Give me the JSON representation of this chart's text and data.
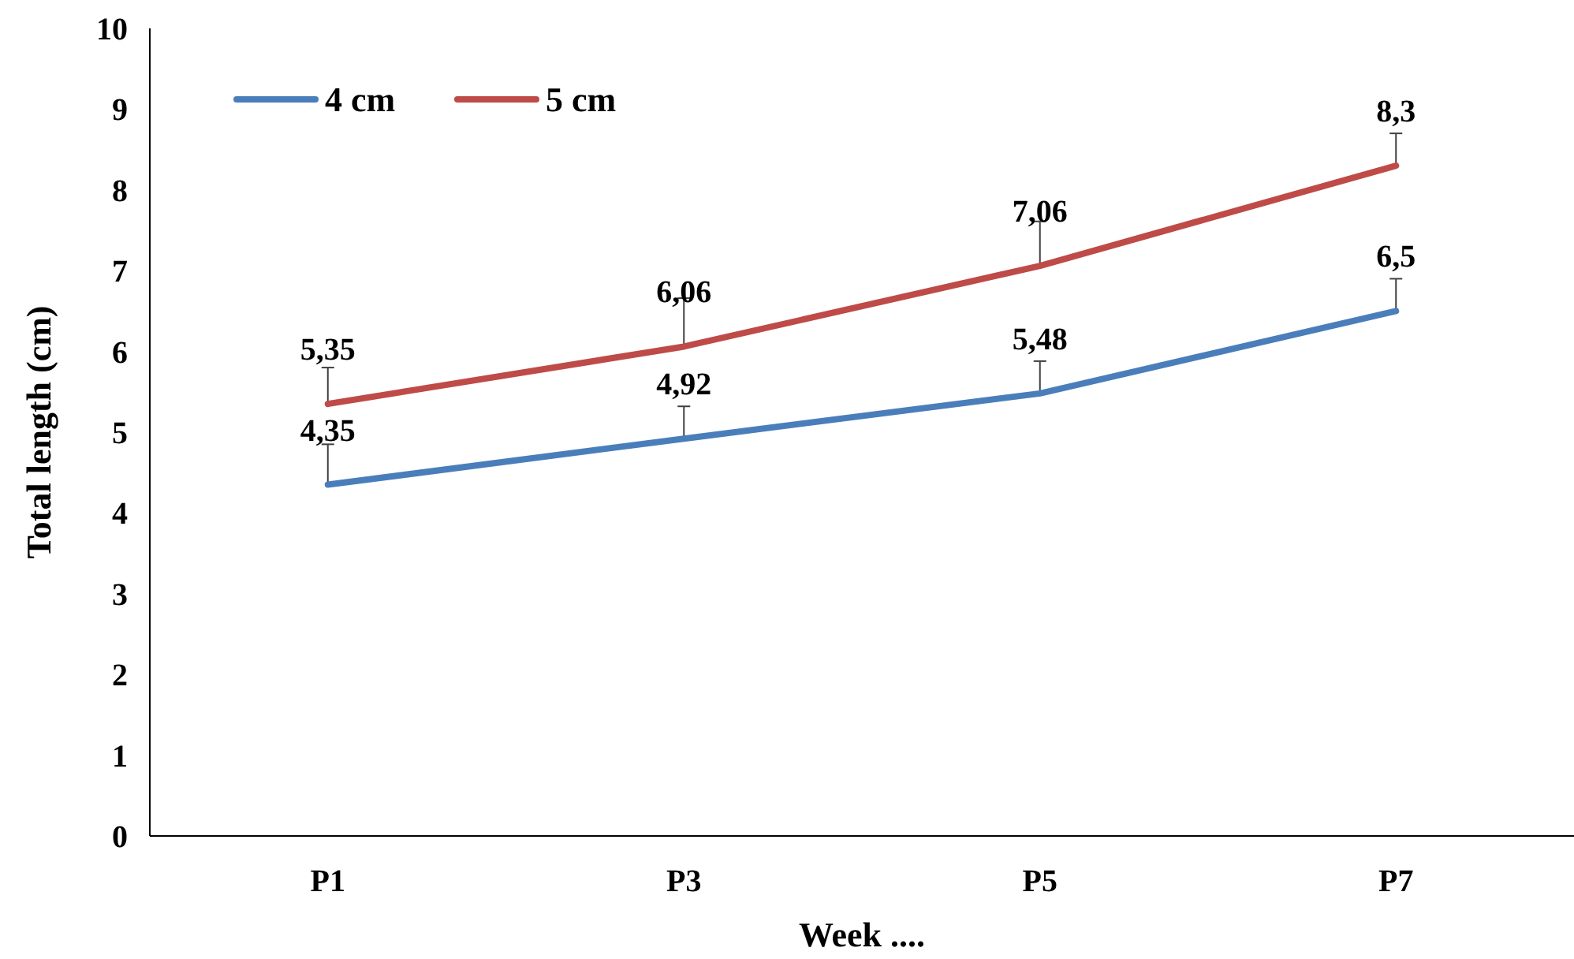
{
  "chart_data": {
    "type": "line",
    "xlabel": "Week ....",
    "ylabel": "Total length (cm)",
    "categories": [
      "P1",
      "P3",
      "P5",
      "P7"
    ],
    "series": [
      {
        "name": "4 cm",
        "color": "#4a7ebb",
        "values": [
          4.35,
          4.92,
          5.48,
          6.5
        ],
        "value_labels": [
          "4,35",
          "4,92",
          "5,48",
          "6,5"
        ],
        "errors": [
          [
            4.35,
            4.85
          ],
          [
            4.92,
            5.32
          ],
          [
            5.48,
            5.88
          ],
          [
            6.5,
            6.9
          ]
        ]
      },
      {
        "name": "5 cm",
        "color": "#be4b48",
        "values": [
          5.35,
          6.06,
          7.06,
          8.3
        ],
        "value_labels": [
          "5,35",
          "6,06",
          "7,06",
          "8,3"
        ],
        "errors": [
          [
            5.35,
            5.8
          ],
          [
            6.06,
            6.66
          ],
          [
            7.06,
            7.61
          ],
          [
            8.3,
            8.7
          ]
        ]
      }
    ],
    "ylim": [
      0,
      10
    ],
    "yticks": [
      0,
      1,
      2,
      3,
      4,
      5,
      6,
      7,
      8,
      9,
      10
    ],
    "grid": false,
    "legend": "top left",
    "marker": "none",
    "line_style": "solid"
  }
}
